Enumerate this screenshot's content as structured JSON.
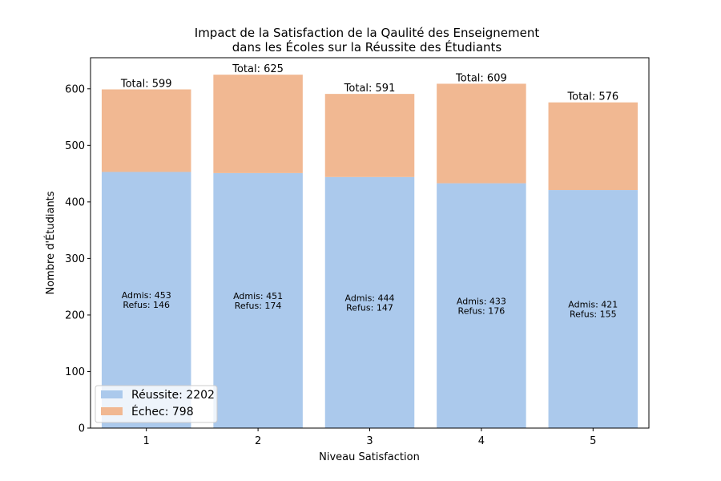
{
  "chart_data": {
    "type": "bar",
    "stacked": true,
    "title_lines": [
      "Impact de la Satisfaction de la Qaulité des Enseignement",
      "dans les Écoles sur la Réussite des Étudiants"
    ],
    "xlabel": "Niveau Satisfaction",
    "ylabel": "Nombre d'Étudiants",
    "categories": [
      "1",
      "2",
      "3",
      "4",
      "5"
    ],
    "ylim": [
      0,
      655
    ],
    "yticks": [
      0,
      100,
      200,
      300,
      400,
      500,
      600
    ],
    "grid": false,
    "legend_position": "lower-left",
    "series": [
      {
        "name": "Réussite",
        "legend_label": "Réussite: 2202",
        "color": "#abc9ec",
        "values": [
          453,
          451,
          444,
          433,
          421
        ]
      },
      {
        "name": "Échec",
        "legend_label": "Échec: 798",
        "color": "#f1b892",
        "values": [
          146,
          174,
          147,
          176,
          155
        ]
      }
    ],
    "totals": [
      599,
      625,
      591,
      609,
      576
    ],
    "total_labels": [
      "Total: 599",
      "Total: 625",
      "Total: 591",
      "Total: 609",
      "Total: 576"
    ],
    "inner_labels": [
      [
        "Admis: 453",
        "Refus: 146"
      ],
      [
        "Admis: 451",
        "Refus: 174"
      ],
      [
        "Admis: 444",
        "Refus: 147"
      ],
      [
        "Admis: 433",
        "Refus: 176"
      ],
      [
        "Admis: 421",
        "Refus: 155"
      ]
    ]
  }
}
